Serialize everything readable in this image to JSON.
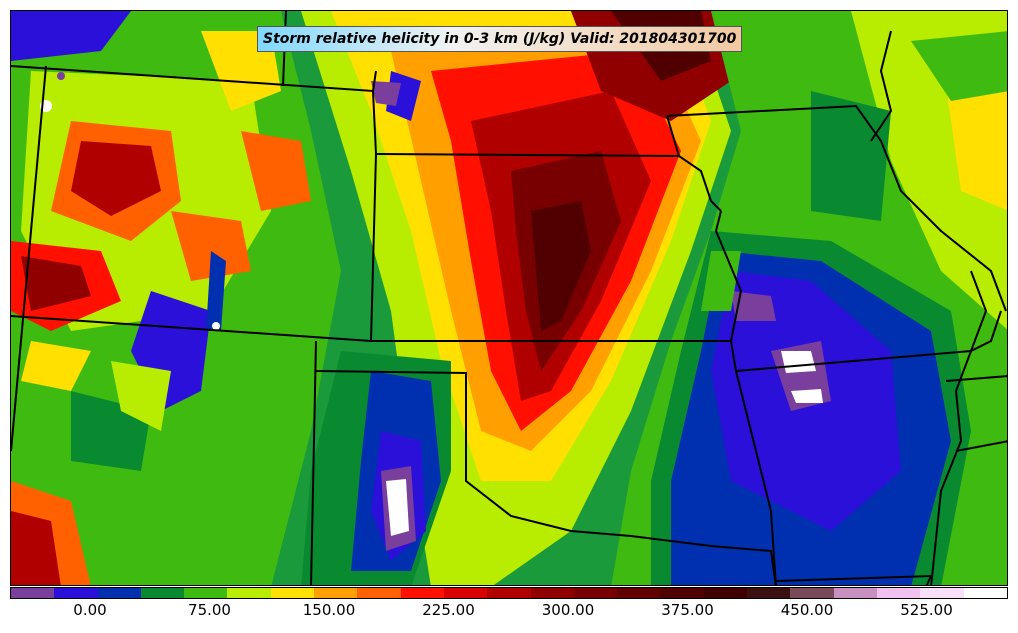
{
  "title": "Storm relative helicity in 0-3 km (J/kg) Valid: 201804301700",
  "colorbar": {
    "colors": [
      "#7a3f9c",
      "#2a10d8",
      "#0030b0",
      "#0a8a30",
      "#3fba10",
      "#b8ec00",
      "#ffe000",
      "#ffa000",
      "#ff6000",
      "#ff1000",
      "#d80000",
      "#b00000",
      "#900000",
      "#780000",
      "#600000",
      "#500000",
      "#400000",
      "#3a1010",
      "#7a4a5a",
      "#c890c0",
      "#f0c0f0",
      "#f8e0f8",
      "#ffffff"
    ],
    "tick_labels": [
      "0.00",
      "75.00",
      "150.00",
      "225.00",
      "300.00",
      "375.00",
      "450.00",
      "525.00"
    ]
  }
}
